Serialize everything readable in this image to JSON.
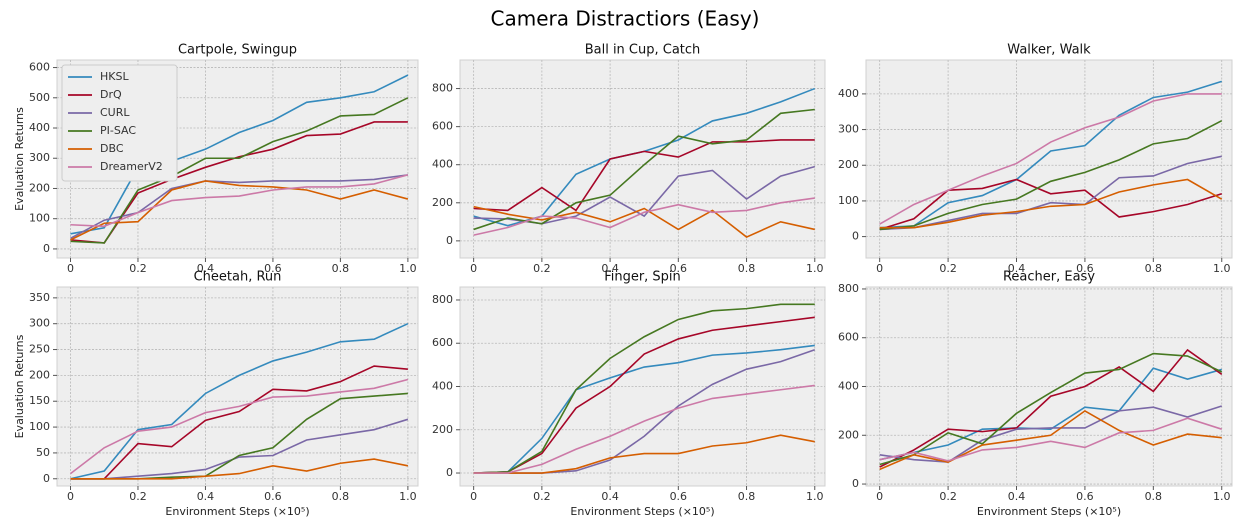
{
  "title": "Camera Distractiors (Easy)",
  "chart_data": [
    {
      "type": "line",
      "title": "Cartpole, Swingup",
      "ylabel": "Evaluation Returns",
      "grid": true,
      "legend": "upper left",
      "x": [
        0,
        0.1,
        0.2,
        0.3,
        0.4,
        0.5,
        0.6,
        0.7,
        0.8,
        0.9,
        1
      ],
      "xlim": [
        -0.04,
        1.03
      ],
      "xticks": [
        0,
        0.2,
        0.4,
        0.6,
        0.8,
        {
          "value": 1,
          "label": "1.0"
        }
      ],
      "ylim": [
        -30,
        625
      ],
      "yticks": [
        0,
        100,
        200,
        300,
        400,
        500,
        600
      ],
      "series": [
        {
          "name": "HKSL",
          "color": "#348ABD",
          "values": [
            50,
            70,
            270,
            290,
            330,
            385,
            425,
            485,
            500,
            520,
            575
          ]
        },
        {
          "name": "DrQ",
          "color": "#A60628",
          "values": [
            30,
            20,
            185,
            230,
            270,
            305,
            330,
            375,
            380,
            420,
            420
          ]
        },
        {
          "name": "CURL",
          "color": "#7A68A6",
          "values": [
            35,
            95,
            120,
            200,
            225,
            220,
            225,
            225,
            225,
            230,
            245
          ]
        },
        {
          "name": "PI-SAC",
          "color": "#467821",
          "values": [
            25,
            20,
            195,
            240,
            300,
            300,
            355,
            390,
            440,
            445,
            500
          ]
        },
        {
          "name": "DBC",
          "color": "#D55E00",
          "values": [
            30,
            85,
            90,
            195,
            225,
            210,
            205,
            195,
            165,
            195,
            165
          ]
        },
        {
          "name": "DreamerV2",
          "color": "#CC79A7",
          "values": [
            80,
            75,
            120,
            160,
            170,
            175,
            195,
            205,
            205,
            215,
            245
          ]
        }
      ]
    },
    {
      "type": "line",
      "title": "Ball in Cup, Catch",
      "grid": true,
      "x": [
        0,
        0.1,
        0.2,
        0.3,
        0.4,
        0.5,
        0.6,
        0.7,
        0.8,
        0.9,
        1
      ],
      "xlim": [
        -0.04,
        1.03
      ],
      "xticks": [
        0,
        0.2,
        0.4,
        0.6,
        0.8,
        {
          "value": 1,
          "label": "1.0"
        }
      ],
      "ylim": [
        -90,
        950
      ],
      "yticks": [
        0,
        200,
        400,
        600,
        800
      ],
      "series": [
        {
          "name": "HKSL",
          "color": "#348ABD",
          "values": [
            130,
            80,
            130,
            350,
            430,
            470,
            530,
            630,
            670,
            730,
            800
          ]
        },
        {
          "name": "DrQ",
          "color": "#A60628",
          "values": [
            170,
            160,
            280,
            160,
            430,
            470,
            440,
            520,
            520,
            530,
            530
          ]
        },
        {
          "name": "CURL",
          "color": "#7A68A6",
          "values": [
            120,
            115,
            90,
            130,
            230,
            130,
            340,
            370,
            220,
            340,
            390
          ]
        },
        {
          "name": "PI-SAC",
          "color": "#467821",
          "values": [
            60,
            120,
            90,
            200,
            240,
            400,
            550,
            510,
            530,
            670,
            690
          ]
        },
        {
          "name": "DBC",
          "color": "#D55E00",
          "values": [
            180,
            140,
            110,
            150,
            100,
            170,
            60,
            160,
            20,
            100,
            60
          ]
        },
        {
          "name": "DreamerV2",
          "color": "#CC79A7",
          "values": [
            30,
            70,
            130,
            120,
            70,
            150,
            190,
            150,
            160,
            200,
            225
          ]
        }
      ]
    },
    {
      "type": "line",
      "title": "Walker, Walk",
      "grid": true,
      "x": [
        0,
        0.1,
        0.2,
        0.3,
        0.4,
        0.5,
        0.6,
        0.7,
        0.8,
        0.9,
        1
      ],
      "xlim": [
        -0.04,
        1.03
      ],
      "xticks": [
        0,
        0.2,
        0.4,
        0.6,
        0.8,
        {
          "value": 1,
          "label": "1.0"
        }
      ],
      "ylim": [
        -60,
        495
      ],
      "yticks": [
        0,
        100,
        200,
        300,
        400
      ],
      "series": [
        {
          "name": "HKSL",
          "color": "#348ABD",
          "values": [
            25,
            30,
            95,
            115,
            160,
            240,
            255,
            340,
            390,
            405,
            435
          ]
        },
        {
          "name": "DrQ",
          "color": "#A60628",
          "values": [
            20,
            50,
            130,
            135,
            160,
            120,
            130,
            55,
            70,
            90,
            120
          ]
        },
        {
          "name": "CURL",
          "color": "#7A68A6",
          "values": [
            20,
            25,
            45,
            65,
            65,
            95,
            90,
            165,
            170,
            205,
            225
          ]
        },
        {
          "name": "PI-SAC",
          "color": "#467821",
          "values": [
            20,
            30,
            65,
            90,
            105,
            155,
            180,
            215,
            260,
            275,
            325
          ]
        },
        {
          "name": "DBC",
          "color": "#D55E00",
          "values": [
            25,
            25,
            40,
            60,
            70,
            85,
            90,
            125,
            145,
            160,
            105
          ]
        },
        {
          "name": "DreamerV2",
          "color": "#CC79A7",
          "values": [
            35,
            90,
            130,
            170,
            205,
            265,
            305,
            335,
            380,
            400,
            400
          ]
        }
      ]
    },
    {
      "type": "line",
      "title": "Cheetah, Run",
      "ylabel": "Evaluation Returns",
      "xlabel": "Environment Steps (×10⁵)",
      "grid": true,
      "x": [
        0,
        0.1,
        0.2,
        0.3,
        0.4,
        0.5,
        0.6,
        0.7,
        0.8,
        0.9,
        1
      ],
      "xlim": [
        -0.04,
        1.03
      ],
      "xticks": [
        0,
        0.2,
        0.4,
        0.6,
        0.8,
        {
          "value": 1,
          "label": "1.0"
        }
      ],
      "ylim": [
        -14,
        371
      ],
      "yticks": [
        0,
        50,
        100,
        150,
        200,
        250,
        300,
        350
      ],
      "series": [
        {
          "name": "HKSL",
          "color": "#348ABD",
          "values": [
            0,
            15,
            95,
            105,
            165,
            200,
            228,
            245,
            265,
            270,
            300
          ]
        },
        {
          "name": "DrQ",
          "color": "#A60628",
          "values": [
            0,
            0,
            68,
            62,
            113,
            130,
            173,
            170,
            188,
            218,
            212
          ]
        },
        {
          "name": "CURL",
          "color": "#7A68A6",
          "values": [
            0,
            0,
            5,
            10,
            18,
            42,
            45,
            75,
            85,
            95,
            115
          ]
        },
        {
          "name": "PI-SAC",
          "color": "#467821",
          "values": [
            0,
            0,
            0,
            3,
            5,
            45,
            60,
            115,
            155,
            160,
            165
          ]
        },
        {
          "name": "DBC",
          "color": "#D55E00",
          "values": [
            0,
            0,
            0,
            0,
            5,
            10,
            25,
            15,
            30,
            38,
            25
          ]
        },
        {
          "name": "DreamerV2",
          "color": "#CC79A7",
          "values": [
            10,
            60,
            92,
            100,
            128,
            140,
            158,
            160,
            168,
            175,
            192
          ]
        }
      ]
    },
    {
      "type": "line",
      "title": "Finger, Spin",
      "xlabel": "Environment Steps (×10⁵)",
      "grid": true,
      "x": [
        0,
        0.1,
        0.2,
        0.3,
        0.4,
        0.5,
        0.6,
        0.7,
        0.8,
        0.9,
        1
      ],
      "xlim": [
        -0.04,
        1.03
      ],
      "xticks": [
        0,
        0.2,
        0.4,
        0.6,
        0.8,
        {
          "value": 1,
          "label": "1.0"
        }
      ],
      "ylim": [
        -60,
        860
      ],
      "yticks": [
        0,
        200,
        400,
        600,
        800
      ],
      "series": [
        {
          "name": "HKSL",
          "color": "#348ABD",
          "values": [
            0,
            5,
            160,
            385,
            440,
            490,
            510,
            545,
            555,
            570,
            590
          ]
        },
        {
          "name": "DrQ",
          "color": "#A60628",
          "values": [
            0,
            5,
            90,
            300,
            400,
            550,
            620,
            660,
            680,
            700,
            720
          ]
        },
        {
          "name": "CURL",
          "color": "#7A68A6",
          "values": [
            0,
            0,
            0,
            10,
            60,
            170,
            310,
            410,
            480,
            515,
            570
          ]
        },
        {
          "name": "PI-SAC",
          "color": "#467821",
          "values": [
            0,
            5,
            100,
            385,
            530,
            630,
            710,
            750,
            760,
            780,
            780
          ]
        },
        {
          "name": "DBC",
          "color": "#D55E00",
          "values": [
            0,
            0,
            0,
            20,
            70,
            90,
            90,
            125,
            140,
            175,
            145
          ]
        },
        {
          "name": "DreamerV2",
          "color": "#CC79A7",
          "values": [
            0,
            0,
            40,
            110,
            170,
            240,
            300,
            345,
            365,
            385,
            405
          ]
        }
      ]
    },
    {
      "type": "line",
      "title": "Reacher, Easy",
      "xlabel": "Environment Steps (×10⁵)",
      "grid": true,
      "x": [
        0,
        0.1,
        0.2,
        0.3,
        0.4,
        0.5,
        0.6,
        0.7,
        0.8,
        0.9,
        1
      ],
      "xlim": [
        -0.04,
        1.03
      ],
      "xticks": [
        0,
        0.2,
        0.4,
        0.6,
        0.8,
        {
          "value": 1,
          "label": "1.0"
        }
      ],
      "ylim": [
        -8,
        808
      ],
      "yticks": [
        0,
        200,
        400,
        600,
        800
      ],
      "series": [
        {
          "name": "HKSL",
          "color": "#348ABD",
          "values": [
            100,
            130,
            160,
            225,
            230,
            225,
            315,
            300,
            475,
            430,
            470
          ]
        },
        {
          "name": "DrQ",
          "color": "#A60628",
          "values": [
            70,
            140,
            225,
            215,
            230,
            360,
            400,
            480,
            380,
            550,
            450
          ]
        },
        {
          "name": "CURL",
          "color": "#7A68A6",
          "values": [
            120,
            100,
            90,
            180,
            225,
            230,
            230,
            300,
            315,
            275,
            320
          ]
        },
        {
          "name": "PI-SAC",
          "color": "#467821",
          "values": [
            80,
            120,
            210,
            165,
            290,
            375,
            455,
            470,
            535,
            525,
            460
          ]
        },
        {
          "name": "DBC",
          "color": "#D55E00",
          "values": [
            60,
            120,
            90,
            160,
            180,
            200,
            300,
            220,
            160,
            205,
            190
          ]
        },
        {
          "name": "DreamerV2",
          "color": "#CC79A7",
          "values": [
            100,
            130,
            95,
            140,
            150,
            175,
            150,
            210,
            220,
            270,
            225
          ]
        }
      ]
    }
  ]
}
